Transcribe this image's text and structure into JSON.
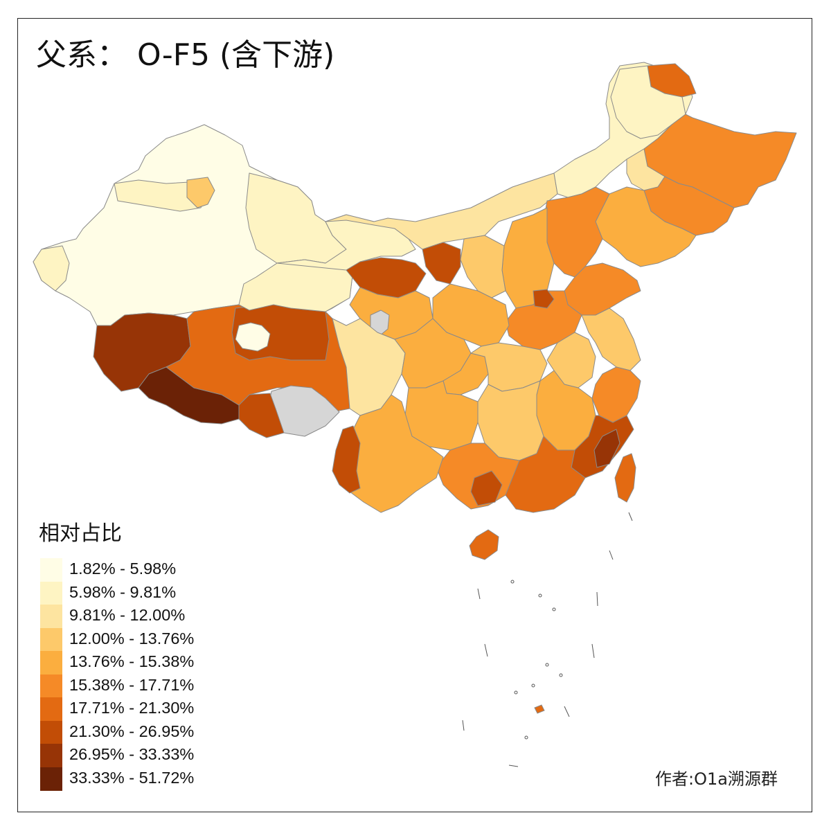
{
  "title": "父系： O-F5 (含下游)",
  "legend": {
    "title": "相对占比",
    "items": [
      {
        "label": "1.82% - 5.98%",
        "color": "#fffde6"
      },
      {
        "label": "5.98% - 9.81%",
        "color": "#fef4c3"
      },
      {
        "label": "9.81% - 12.00%",
        "color": "#fde4a0"
      },
      {
        "label": "12.00% - 13.76%",
        "color": "#fdc96a"
      },
      {
        "label": "13.76% - 15.38%",
        "color": "#fbae3f"
      },
      {
        "label": "15.38% - 17.71%",
        "color": "#f58a27"
      },
      {
        "label": "17.71% - 21.30%",
        "color": "#e36a12"
      },
      {
        "label": "21.30% - 26.95%",
        "color": "#c24d06"
      },
      {
        "label": "26.95% - 33.33%",
        "color": "#973406"
      },
      {
        "label": "33.33% - 51.72%",
        "color": "#6b2206"
      }
    ]
  },
  "no_data_color": "#d6d6d6",
  "author": "作者:O1a溯源群"
}
